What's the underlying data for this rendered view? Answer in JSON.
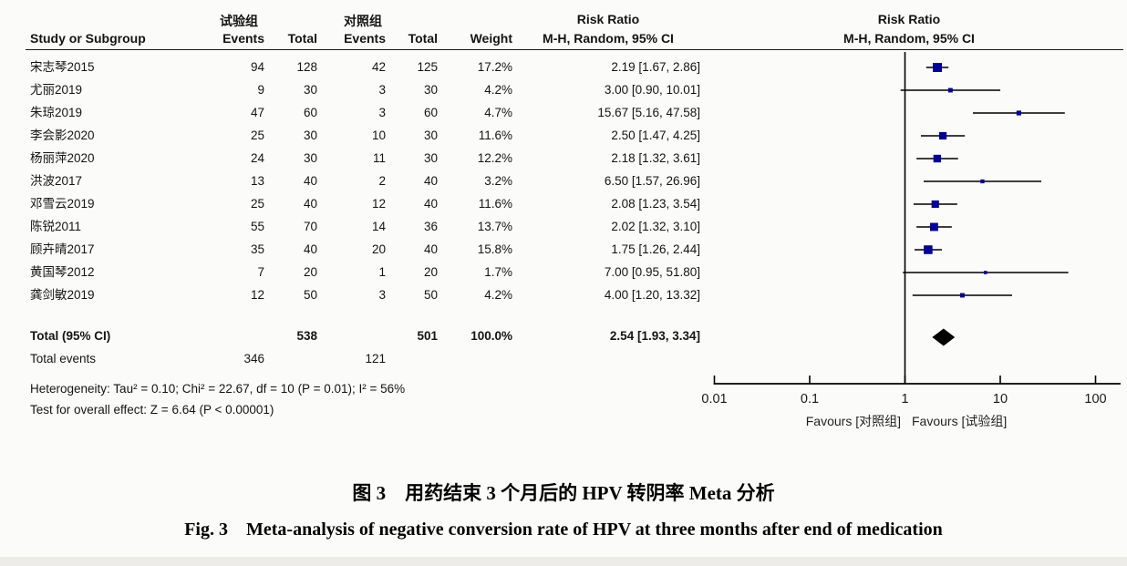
{
  "table": {
    "group_headers": {
      "experimental": "试验组",
      "control": "对照组"
    },
    "col_headers": {
      "study": "Study or Subgroup",
      "events": "Events",
      "total": "Total",
      "events2": "Events",
      "total2": "Total",
      "weight": "Weight",
      "risk_ratio": "Risk Ratio",
      "method": "M-H, Random, 95% CI"
    },
    "plot_headers": {
      "risk_ratio": "Risk Ratio",
      "method": "M-H, Random, 95% CI"
    },
    "total_row": {
      "label": "Total (95% CI)",
      "total_exp": "538",
      "total_ctl": "501",
      "weight": "100.0%",
      "ci_label": "2.54 [1.93, 3.34]"
    },
    "total_events_row": {
      "label": "Total events",
      "events_exp": "346",
      "events_ctl": "121"
    },
    "heterogeneity": "Heterogeneity: Tau² = 0.10; Chi² = 22.67, df = 10 (P = 0.01); I² = 56%",
    "overall_effect": "Test for overall effect: Z = 6.64 (P < 0.00001)"
  },
  "plot": {
    "axis_ticks": [
      "0.01",
      "0.1",
      "1",
      "10",
      "100"
    ],
    "favours_left": "Favours [对照组]",
    "favours_right": "Favours [试验组]",
    "marker_color": "#000099",
    "line_color": "#000000",
    "diamond_color": "#000000"
  },
  "caption": {
    "zh": "图 3　用药结束 3 个月后的 HPV 转阴率 Meta 分析",
    "en": "Fig. 3    Meta-analysis of negative conversion rate of HPV at three months after end of medication"
  },
  "chart_data": {
    "type": "forest",
    "title": "Risk Ratio",
    "method": "M-H, Random, 95% CI",
    "x_scale": "log10",
    "x_range": [
      0.01,
      100
    ],
    "x_ticks": [
      0.01,
      0.1,
      1,
      10,
      100
    ],
    "studies": [
      {
        "name": "宋志琴2015",
        "events_exp": 94,
        "total_exp": 128,
        "events_ctl": 42,
        "total_ctl": 125,
        "weight": "17.2%",
        "weight_pct": 17.2,
        "rr": 2.19,
        "ci_low": 1.67,
        "ci_high": 2.86,
        "label": "2.19 [1.67, 2.86]"
      },
      {
        "name": "尤丽2019",
        "events_exp": 9,
        "total_exp": 30,
        "events_ctl": 3,
        "total_ctl": 30,
        "weight": "4.2%",
        "weight_pct": 4.2,
        "rr": 3.0,
        "ci_low": 0.9,
        "ci_high": 10.01,
        "label": "3.00 [0.90, 10.01]"
      },
      {
        "name": "朱琼2019",
        "events_exp": 47,
        "total_exp": 60,
        "events_ctl": 3,
        "total_ctl": 60,
        "weight": "4.7%",
        "weight_pct": 4.7,
        "rr": 15.67,
        "ci_low": 5.16,
        "ci_high": 47.58,
        "label": "15.67 [5.16, 47.58]"
      },
      {
        "name": "李会影2020",
        "events_exp": 25,
        "total_exp": 30,
        "events_ctl": 10,
        "total_ctl": 30,
        "weight": "11.6%",
        "weight_pct": 11.6,
        "rr": 2.5,
        "ci_low": 1.47,
        "ci_high": 4.25,
        "label": "2.50 [1.47, 4.25]"
      },
      {
        "name": "杨丽萍2020",
        "events_exp": 24,
        "total_exp": 30,
        "events_ctl": 11,
        "total_ctl": 30,
        "weight": "12.2%",
        "weight_pct": 12.2,
        "rr": 2.18,
        "ci_low": 1.32,
        "ci_high": 3.61,
        "label": "2.18 [1.32, 3.61]"
      },
      {
        "name": "洪波2017",
        "events_exp": 13,
        "total_exp": 40,
        "events_ctl": 2,
        "total_ctl": 40,
        "weight": "3.2%",
        "weight_pct": 3.2,
        "rr": 6.5,
        "ci_low": 1.57,
        "ci_high": 26.96,
        "label": "6.50 [1.57, 26.96]"
      },
      {
        "name": "邓雪云2019",
        "events_exp": 25,
        "total_exp": 40,
        "events_ctl": 12,
        "total_ctl": 40,
        "weight": "11.6%",
        "weight_pct": 11.6,
        "rr": 2.08,
        "ci_low": 1.23,
        "ci_high": 3.54,
        "label": "2.08 [1.23, 3.54]"
      },
      {
        "name": "陈锐2011",
        "events_exp": 55,
        "total_exp": 70,
        "events_ctl": 14,
        "total_ctl": 36,
        "weight": "13.7%",
        "weight_pct": 13.7,
        "rr": 2.02,
        "ci_low": 1.32,
        "ci_high": 3.1,
        "label": "2.02 [1.32, 3.10]"
      },
      {
        "name": "顾卉晴2017",
        "events_exp": 35,
        "total_exp": 40,
        "events_ctl": 20,
        "total_ctl": 40,
        "weight": "15.8%",
        "weight_pct": 15.8,
        "rr": 1.75,
        "ci_low": 1.26,
        "ci_high": 2.44,
        "label": "1.75 [1.26, 2.44]"
      },
      {
        "name": "黄国琴2012",
        "events_exp": 7,
        "total_exp": 20,
        "events_ctl": 1,
        "total_ctl": 20,
        "weight": "1.7%",
        "weight_pct": 1.7,
        "rr": 7.0,
        "ci_low": 0.95,
        "ci_high": 51.8,
        "label": "7.00 [0.95, 51.80]"
      },
      {
        "name": "龚剑敏2019",
        "events_exp": 12,
        "total_exp": 50,
        "events_ctl": 3,
        "total_ctl": 50,
        "weight": "4.2%",
        "weight_pct": 4.2,
        "rr": 4.0,
        "ci_low": 1.2,
        "ci_high": 13.32,
        "label": "4.00 [1.20, 13.32]"
      }
    ],
    "total": {
      "rr": 2.54,
      "ci_low": 1.93,
      "ci_high": 3.34
    }
  }
}
